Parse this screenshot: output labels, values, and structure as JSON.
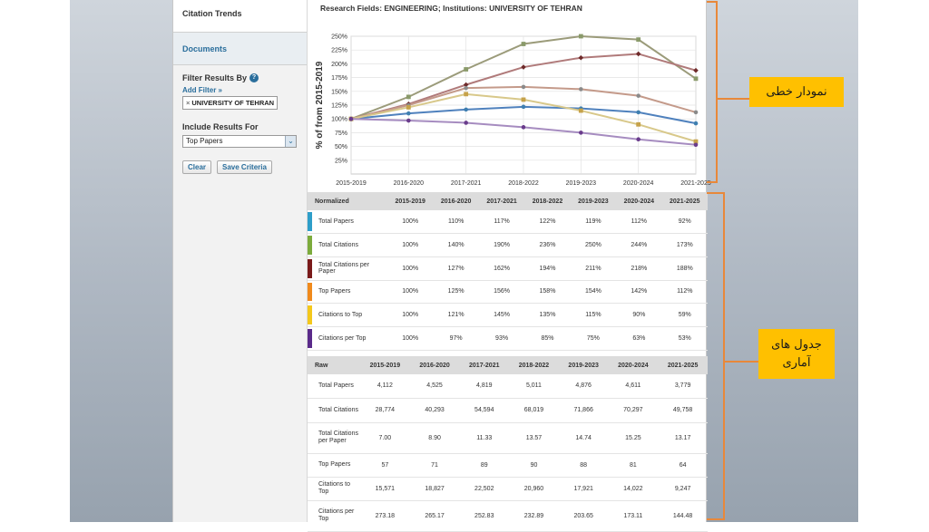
{
  "sidebar": {
    "tabs": [
      "Citation Trends",
      "Documents"
    ],
    "filter_title": "Filter Results By",
    "add_filter": "Add Filter »",
    "filter_chip": "UNIVERSITY OF TEHRAN",
    "include_title": "Include Results For",
    "include_value": "Top Papers",
    "clear_label": "Clear",
    "save_label": "Save Criteria"
  },
  "main": {
    "title": "Research Fields: ENGINEERING; Institutions: UNIVERSITY OF TEHRAN"
  },
  "chart_data": {
    "type": "line",
    "title": "",
    "ylabel": "% of from 2015-2019",
    "xlabel": "",
    "x": [
      "2015-2019",
      "2016-2020",
      "2017-2021",
      "2018-2022",
      "2019-2023",
      "2020-2024",
      "2021-2025"
    ],
    "ylim": [
      0,
      250
    ],
    "yticks": [
      "25%",
      "50%",
      "75%",
      "100%",
      "125%",
      "150%",
      "175%",
      "200%",
      "225%",
      "250%"
    ],
    "grid": true,
    "series": [
      {
        "values": [
          100,
          110,
          117,
          122,
          119,
          112,
          92
        ],
        "color": "#4f81bd"
      },
      {
        "values": [
          100,
          140,
          190,
          236,
          250,
          244,
          173
        ],
        "color": "#9b9b7a"
      },
      {
        "values": [
          100,
          127,
          162,
          194,
          211,
          218,
          188
        ],
        "color": "#b07a7a"
      },
      {
        "values": [
          100,
          125,
          156,
          158,
          154,
          142,
          112
        ],
        "color": "#c49a8a"
      },
      {
        "values": [
          100,
          121,
          145,
          135,
          115,
          90,
          59
        ],
        "color": "#d8c88a"
      },
      {
        "values": [
          100,
          97,
          93,
          85,
          75,
          63,
          53
        ],
        "color": "#a68cc0"
      }
    ],
    "markers": {
      "series_0": "#3f7fb0",
      "series_1": "#8a9a6a",
      "series_2": "#6e2a2a",
      "series_3": "#8a8a8a",
      "series_4": "#c6a24a",
      "series_5": "#6a3c8c"
    }
  },
  "normalized": {
    "header": [
      "Normalized",
      "2015-2019",
      "2016-2020",
      "2017-2021",
      "2018-2022",
      "2019-2023",
      "2020-2024",
      "2021-2025"
    ],
    "rows": [
      {
        "label": "Total Papers",
        "color": "#2e9ec9",
        "values": [
          "100%",
          "110%",
          "117%",
          "122%",
          "119%",
          "112%",
          "92%"
        ]
      },
      {
        "label": "Total Citations",
        "color": "#7cab3c",
        "values": [
          "100%",
          "140%",
          "190%",
          "236%",
          "250%",
          "244%",
          "173%"
        ]
      },
      {
        "label": "Total Citations per Paper",
        "color": "#7a1a1a",
        "values": [
          "100%",
          "127%",
          "162%",
          "194%",
          "211%",
          "218%",
          "188%"
        ]
      },
      {
        "label": "Top Papers",
        "color": "#f08a1c",
        "values": [
          "100%",
          "125%",
          "156%",
          "158%",
          "154%",
          "142%",
          "112%"
        ]
      },
      {
        "label": "Citations to Top",
        "color": "#f4c81c",
        "values": [
          "100%",
          "121%",
          "145%",
          "135%",
          "115%",
          "90%",
          "59%"
        ]
      },
      {
        "label": "Citations per Top",
        "color": "#5a2a8a",
        "values": [
          "100%",
          "97%",
          "93%",
          "85%",
          "75%",
          "63%",
          "53%"
        ]
      }
    ]
  },
  "raw": {
    "header": [
      "Raw",
      "2015-2019",
      "2016-2020",
      "2017-2021",
      "2018-2022",
      "2019-2023",
      "2020-2024",
      "2021-2025"
    ],
    "rows": [
      {
        "label": "Total Papers",
        "values": [
          "4,112",
          "4,525",
          "4,819",
          "5,011",
          "4,876",
          "4,611",
          "3,779"
        ]
      },
      {
        "label": "Total Citations",
        "values": [
          "28,774",
          "40,293",
          "54,594",
          "68,019",
          "71,866",
          "70,297",
          "49,758"
        ]
      },
      {
        "label": "Total Citations per Paper",
        "values": [
          "7.00",
          "8.90",
          "11.33",
          "13.57",
          "14.74",
          "15.25",
          "13.17"
        ]
      },
      {
        "label": "Top Papers",
        "values": [
          "57",
          "71",
          "89",
          "90",
          "88",
          "81",
          "64"
        ]
      },
      {
        "label": "Citations to Top",
        "values": [
          "15,571",
          "18,827",
          "22,502",
          "20,960",
          "17,921",
          "14,022",
          "9,247"
        ]
      },
      {
        "label": "Citations per Top",
        "values": [
          "273.18",
          "265.17",
          "252.83",
          "232.89",
          "203.65",
          "173.11",
          "144.48"
        ]
      }
    ]
  },
  "annotations": {
    "chart_note": "نمودار خطی",
    "table_note": "جدول های آماری"
  }
}
